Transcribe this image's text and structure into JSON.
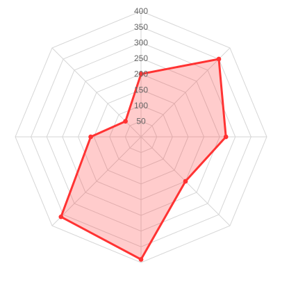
{
  "chart_data": {
    "type": "radar",
    "axes": [
      "",
      "",
      "",
      "",
      "",
      "",
      "",
      ""
    ],
    "rlim": [
      0,
      400
    ],
    "ticks": [
      50,
      100,
      150,
      200,
      250,
      300,
      350,
      400
    ],
    "tick_labels": [
      "50",
      "100",
      "150",
      "200",
      "250",
      "300",
      "350",
      "400"
    ],
    "grid": true,
    "legend": "none",
    "series": [
      {
        "values": [
          200,
          350,
          270,
          200,
          390,
          360,
          160,
          70
        ],
        "stroke": "#ff3333",
        "fill": "rgba(255, 51, 51, 0.25)"
      }
    ]
  }
}
